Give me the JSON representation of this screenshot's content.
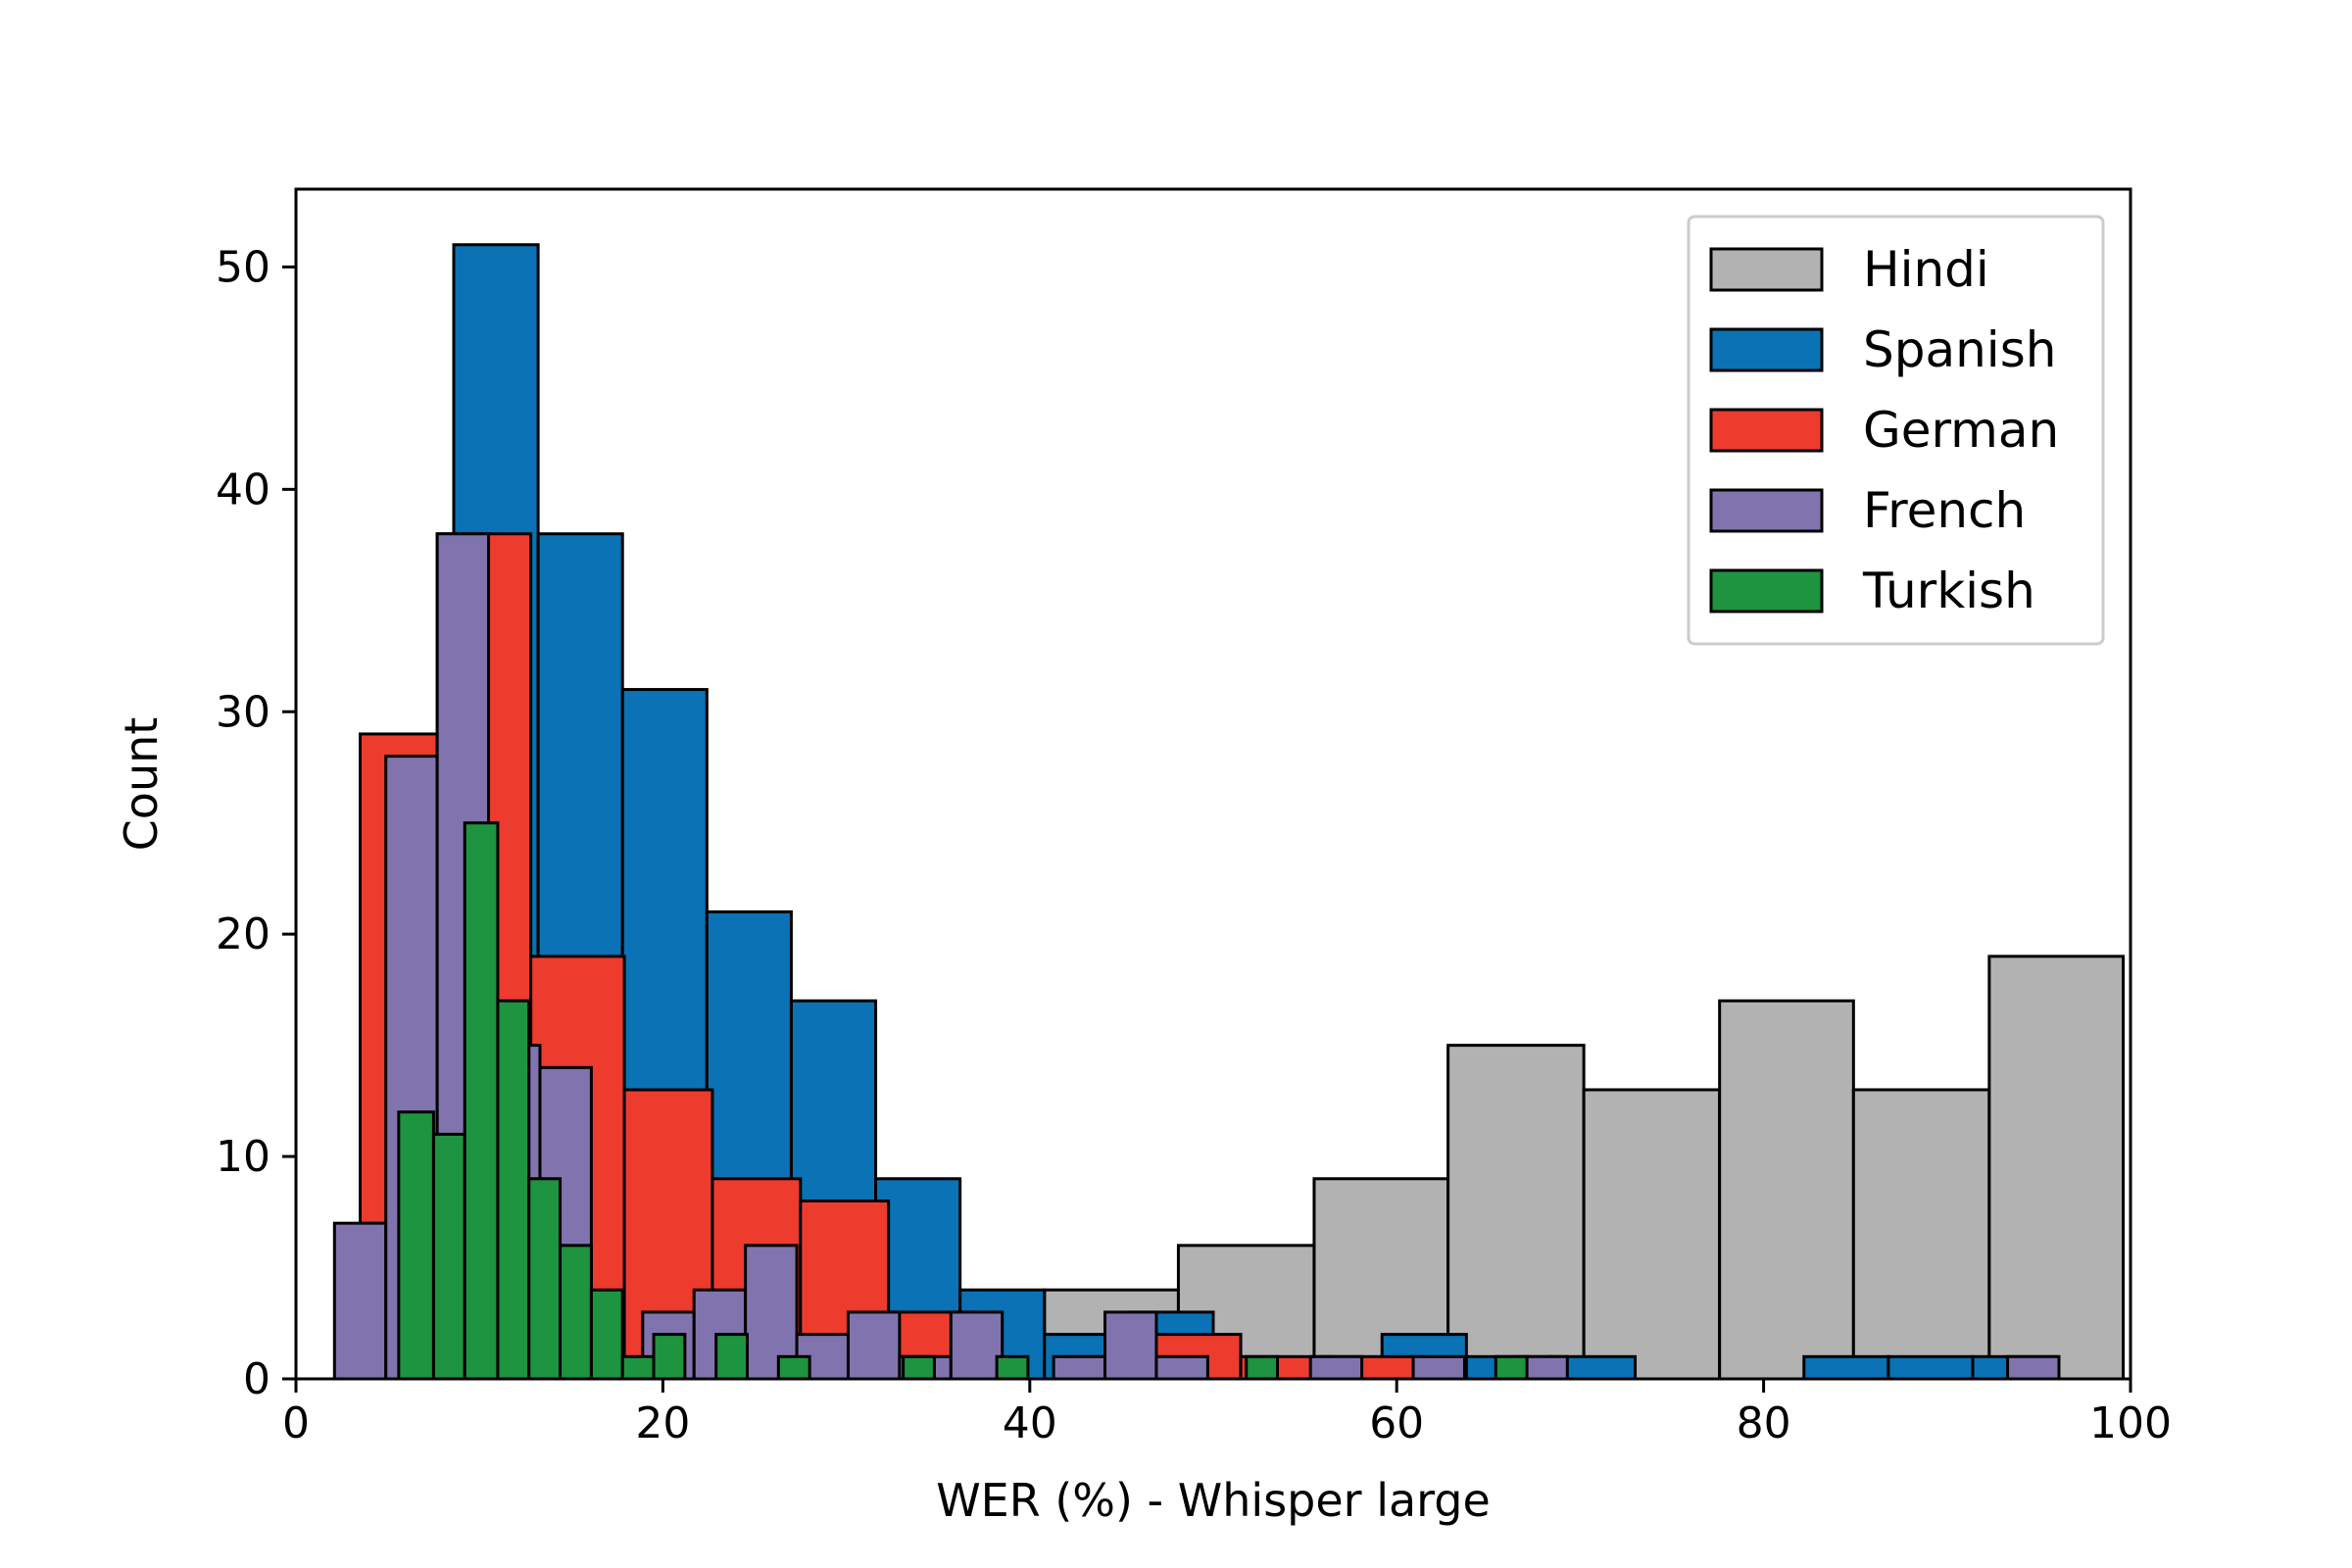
{
  "chart_data": {
    "type": "bar",
    "title": "",
    "xlabel": "WER (%) - Whisper large",
    "ylabel": "Count",
    "xlim": [
      0,
      100
    ],
    "ylim": [
      0,
      53.5
    ],
    "xticks": [
      0,
      20,
      40,
      60,
      80,
      100
    ],
    "yticks": [
      0,
      10,
      20,
      30,
      40,
      50
    ],
    "grid": false,
    "legend_position": "top-right",
    "series": [
      {
        "name": "Hindi",
        "color": "#b2b2b2",
        "bins": [
          {
            "x0": 40.8,
            "x1": 48.1,
            "count": 4
          },
          {
            "x0": 48.1,
            "x1": 55.5,
            "count": 6
          },
          {
            "x0": 55.5,
            "x1": 62.8,
            "count": 9
          },
          {
            "x0": 62.8,
            "x1": 70.2,
            "count": 15
          },
          {
            "x0": 70.2,
            "x1": 77.6,
            "count": 13
          },
          {
            "x0": 77.6,
            "x1": 84.9,
            "count": 17
          },
          {
            "x0": 84.9,
            "x1": 92.3,
            "count": 13
          },
          {
            "x0": 92.3,
            "x1": 99.6,
            "count": 19
          }
        ]
      },
      {
        "name": "Spanish",
        "color": "#0a72b5",
        "bins": [
          {
            "x0": 8.6,
            "x1": 13.2,
            "count": 51
          },
          {
            "x0": 13.2,
            "x1": 17.8,
            "count": 38
          },
          {
            "x0": 17.8,
            "x1": 22.4,
            "count": 31
          },
          {
            "x0": 22.4,
            "x1": 27.0,
            "count": 21
          },
          {
            "x0": 27.0,
            "x1": 31.6,
            "count": 17
          },
          {
            "x0": 31.6,
            "x1": 36.2,
            "count": 9
          },
          {
            "x0": 36.2,
            "x1": 40.8,
            "count": 4
          },
          {
            "x0": 40.8,
            "x1": 45.4,
            "count": 2
          },
          {
            "x0": 45.4,
            "x1": 50.0,
            "count": 3
          },
          {
            "x0": 59.2,
            "x1": 63.8,
            "count": 2
          },
          {
            "x0": 63.8,
            "x1": 68.4,
            "count": 1
          },
          {
            "x0": 68.4,
            "x1": 73.0,
            "count": 1
          },
          {
            "x0": 82.2,
            "x1": 86.8,
            "count": 1
          },
          {
            "x0": 86.8,
            "x1": 91.4,
            "count": 1
          },
          {
            "x0": 91.4,
            "x1": 96.0,
            "count": 1
          }
        ]
      },
      {
        "name": "German",
        "color": "#ed3b2e",
        "bins": [
          {
            "x0": 3.5,
            "x1": 7.7,
            "count": 29
          },
          {
            "x0": 7.7,
            "x1": 12.8,
            "count": 38
          },
          {
            "x0": 12.8,
            "x1": 17.9,
            "count": 19
          },
          {
            "x0": 17.9,
            "x1": 22.7,
            "count": 13
          },
          {
            "x0": 22.7,
            "x1": 27.5,
            "count": 9
          },
          {
            "x0": 27.5,
            "x1": 32.3,
            "count": 8
          },
          {
            "x0": 32.3,
            "x1": 37.1,
            "count": 3
          },
          {
            "x0": 41.9,
            "x1": 46.7,
            "count": 1
          },
          {
            "x0": 46.7,
            "x1": 51.5,
            "count": 2
          },
          {
            "x0": 51.5,
            "x1": 56.3,
            "count": 1
          },
          {
            "x0": 56.3,
            "x1": 61.1,
            "count": 1
          }
        ]
      },
      {
        "name": "French",
        "color": "#8174ae",
        "bins": [
          {
            "x0": 2.1,
            "x1": 4.9,
            "count": 7
          },
          {
            "x0": 4.9,
            "x1": 7.7,
            "count": 28
          },
          {
            "x0": 7.7,
            "x1": 10.5,
            "count": 38
          },
          {
            "x0": 10.5,
            "x1": 13.3,
            "count": 15
          },
          {
            "x0": 13.3,
            "x1": 16.1,
            "count": 14
          },
          {
            "x0": 18.9,
            "x1": 21.7,
            "count": 3
          },
          {
            "x0": 21.7,
            "x1": 24.5,
            "count": 4
          },
          {
            "x0": 24.5,
            "x1": 27.3,
            "count": 6
          },
          {
            "x0": 27.3,
            "x1": 30.1,
            "count": 2
          },
          {
            "x0": 30.1,
            "x1": 32.9,
            "count": 3
          },
          {
            "x0": 32.9,
            "x1": 35.7,
            "count": 1
          },
          {
            "x0": 35.7,
            "x1": 38.5,
            "count": 3
          },
          {
            "x0": 41.3,
            "x1": 44.1,
            "count": 1
          },
          {
            "x0": 44.1,
            "x1": 46.9,
            "count": 3
          },
          {
            "x0": 46.9,
            "x1": 49.7,
            "count": 1
          },
          {
            "x0": 55.3,
            "x1": 58.1,
            "count": 1
          },
          {
            "x0": 60.9,
            "x1": 63.7,
            "count": 1
          },
          {
            "x0": 66.5,
            "x1": 69.3,
            "count": 1
          },
          {
            "x0": 93.3,
            "x1": 96.1,
            "count": 1
          }
        ]
      },
      {
        "name": "Turkish",
        "color": "#1e9340",
        "bins": [
          {
            "x0": 5.6,
            "x1": 7.5,
            "count": 12
          },
          {
            "x0": 7.5,
            "x1": 9.2,
            "count": 11
          },
          {
            "x0": 9.2,
            "x1": 11.0,
            "count": 25
          },
          {
            "x0": 11.0,
            "x1": 12.7,
            "count": 17
          },
          {
            "x0": 12.7,
            "x1": 14.4,
            "count": 9
          },
          {
            "x0": 14.4,
            "x1": 16.1,
            "count": 6
          },
          {
            "x0": 16.1,
            "x1": 17.8,
            "count": 4
          },
          {
            "x0": 17.8,
            "x1": 19.5,
            "count": 1
          },
          {
            "x0": 19.5,
            "x1": 21.2,
            "count": 2
          },
          {
            "x0": 22.9,
            "x1": 24.6,
            "count": 2
          },
          {
            "x0": 26.3,
            "x1": 28.0,
            "count": 1
          },
          {
            "x0": 33.1,
            "x1": 34.8,
            "count": 1
          },
          {
            "x0": 38.2,
            "x1": 39.9,
            "count": 1
          },
          {
            "x0": 51.8,
            "x1": 53.5,
            "count": 1
          },
          {
            "x0": 65.4,
            "x1": 67.1,
            "count": 1
          }
        ]
      }
    ]
  }
}
